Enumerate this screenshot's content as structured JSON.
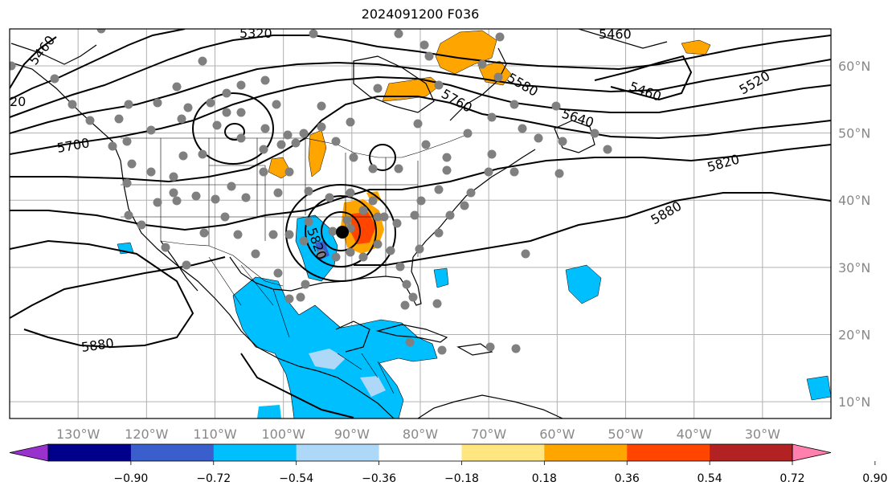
{
  "title": "2024091200 F036",
  "map": {
    "projection": "equirectangular",
    "lon_range": [
      -140,
      -20
    ],
    "lat_range": [
      7.5,
      65.5
    ],
    "meridians": [
      -140,
      -130,
      -120,
      -110,
      -100,
      -90,
      -80,
      -70,
      -60,
      -50,
      -40,
      -30,
      -20
    ],
    "parallels": [
      10,
      20,
      30,
      40,
      50,
      60
    ],
    "lon_tick_labels": [
      "130°W",
      "120°W",
      "110°W",
      "100°W",
      "90°W",
      "80°W",
      "70°W",
      "60°W",
      "50°W",
      "40°W",
      "30°W"
    ],
    "lat_tick_labels": [
      "10°N",
      "20°N",
      "30°N",
      "40°N",
      "50°N",
      "60°N"
    ],
    "grid": true,
    "colors": {
      "coast": "#000000",
      "grid": "#b0b0b0",
      "stations": "#808080",
      "contour": "#000000"
    }
  },
  "contour_labels": [
    "5320",
    "5460",
    "20",
    "5460",
    "5580",
    "5760",
    "5640",
    "5460",
    "5520",
    "5700",
    "5820",
    "5880",
    "5820",
    "5880"
  ],
  "stations_count_visible": 130,
  "colorbar": {
    "extend": "both",
    "levels": [
      "−0.90",
      "−0.72",
      "−0.54",
      "−0.36",
      "−0.18",
      "0.18",
      "0.36",
      "0.54",
      "0.72",
      "0.90"
    ],
    "colors": [
      "#9932cc",
      "#00008b",
      "#3a5fcd",
      "#00bfff",
      "#add8f7",
      "#ffffff",
      "#ffe680",
      "#ffa500",
      "#ff4500",
      "#b22222",
      "#ff80ad"
    ]
  }
}
